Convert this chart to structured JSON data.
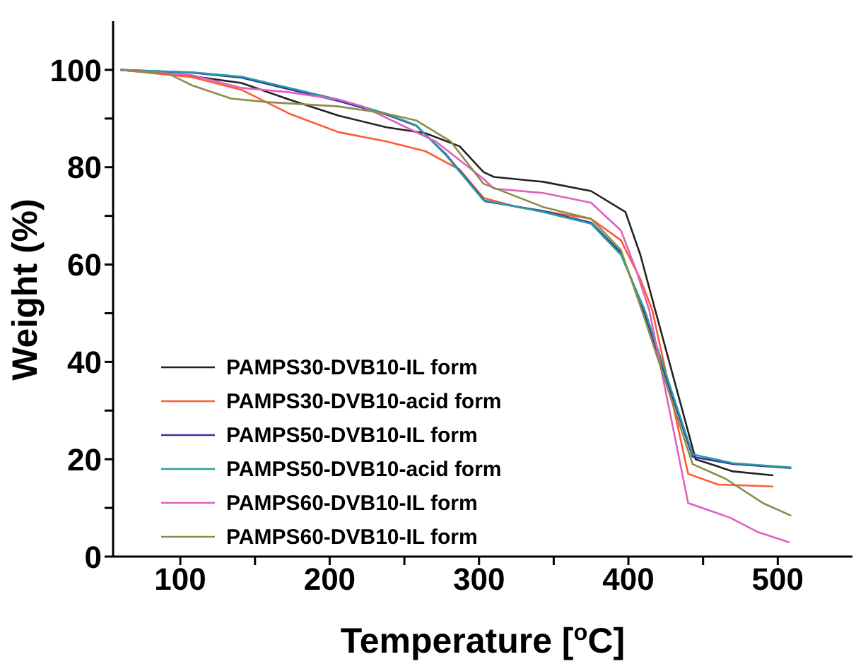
{
  "chart_data": {
    "type": "line",
    "xlabel": "Temperature [$^{o}$C]",
    "ylabel": "Weight (%)",
    "xlim": [
      55,
      550
    ],
    "ylim": [
      0,
      110
    ],
    "xticks": [
      100,
      {
        "value": 150,
        "label": null
      },
      200,
      {
        "value": 250,
        "label": null
      },
      300,
      {
        "value": 350,
        "label": null
      },
      400,
      {
        "value": 450,
        "label": null
      },
      500
    ],
    "yticks": [
      0,
      {
        "value": 10,
        "label": null
      },
      20,
      {
        "value": 30,
        "label": null
      },
      40,
      {
        "value": 50,
        "label": null
      },
      60,
      {
        "value": 70,
        "label": null
      },
      80,
      {
        "value": 90,
        "label": null
      },
      100
    ],
    "grid": false,
    "legend": "bottom left",
    "marker": "none",
    "line_style": "solid",
    "series": [
      {
        "name": "PAMPS30-DVB10-IL form",
        "color": "#222222",
        "x": [
          60,
          108,
          141,
          173,
          206,
          238,
          264,
          287,
          303,
          310,
          343,
          375,
          398,
          408,
          418,
          445,
          470,
          497
        ],
        "values": [
          100,
          98.7,
          97.3,
          93.9,
          90.6,
          88.2,
          87,
          84.3,
          79,
          78,
          77,
          75.1,
          70.8,
          62,
          50.6,
          20,
          17.5,
          16.7
        ]
      },
      {
        "name": "PAMPS30-DVB10-acid form",
        "color": "#ff5a33",
        "x": [
          60,
          108,
          141,
          173,
          206,
          238,
          264,
          287,
          303,
          326,
          375,
          395,
          408,
          416,
          440,
          460,
          497
        ],
        "values": [
          100,
          98.5,
          95.9,
          91,
          87.2,
          85.3,
          83.3,
          79.5,
          73.7,
          71.8,
          69.4,
          65,
          57,
          50.6,
          17,
          14.8,
          14.4
        ]
      },
      {
        "name": "PAMPS50-DVB10-IL form",
        "color": "#3333aa",
        "x": [
          60,
          108,
          141,
          173,
          206,
          238,
          258,
          278,
          304,
          343,
          375,
          395,
          410,
          443,
          470,
          509
        ],
        "values": [
          100,
          99.4,
          98.4,
          96,
          93.6,
          90.8,
          88.5,
          82.6,
          73,
          71,
          68.6,
          62.5,
          50.6,
          20.5,
          19,
          18.2
        ]
      },
      {
        "name": "PAMPS50-DVB10-acid form",
        "color": "#2a9d9d",
        "x": [
          60,
          108,
          141,
          173,
          206,
          238,
          258,
          278,
          303,
          343,
          375,
          395,
          411,
          443,
          470,
          509
        ],
        "values": [
          100,
          99.5,
          98.6,
          96.3,
          93.9,
          91,
          88.6,
          82.4,
          73.2,
          70.8,
          68.4,
          62,
          50.6,
          21,
          19.2,
          18.3
        ]
      },
      {
        "name": "PAMPS60-DVB10-IL form",
        "color": "#e060c0",
        "x": [
          60,
          108,
          141,
          173,
          206,
          222,
          245,
          271,
          303,
          310,
          343,
          375,
          395,
          405,
          414,
          440,
          468,
          487,
          508
        ],
        "values": [
          100,
          98.9,
          96.3,
          95.4,
          93.9,
          92.5,
          89.1,
          85.3,
          77.6,
          75.6,
          74.7,
          72.7,
          67,
          59,
          50.6,
          11,
          8,
          5,
          2.9
        ]
      },
      {
        "name": "PAMPS60-DVB10-IL form",
        "color": "#8c8c4a",
        "x": [
          60,
          92,
          108,
          134,
          157,
          206,
          238,
          258,
          281,
          303,
          343,
          375,
          395,
          409,
          443,
          465,
          490,
          509
        ],
        "values": [
          100,
          99.2,
          96.8,
          94.1,
          93.4,
          92.5,
          91,
          89.6,
          85.3,
          76.6,
          71.8,
          69.4,
          63,
          50.6,
          19,
          16,
          11,
          8.4
        ]
      }
    ]
  }
}
